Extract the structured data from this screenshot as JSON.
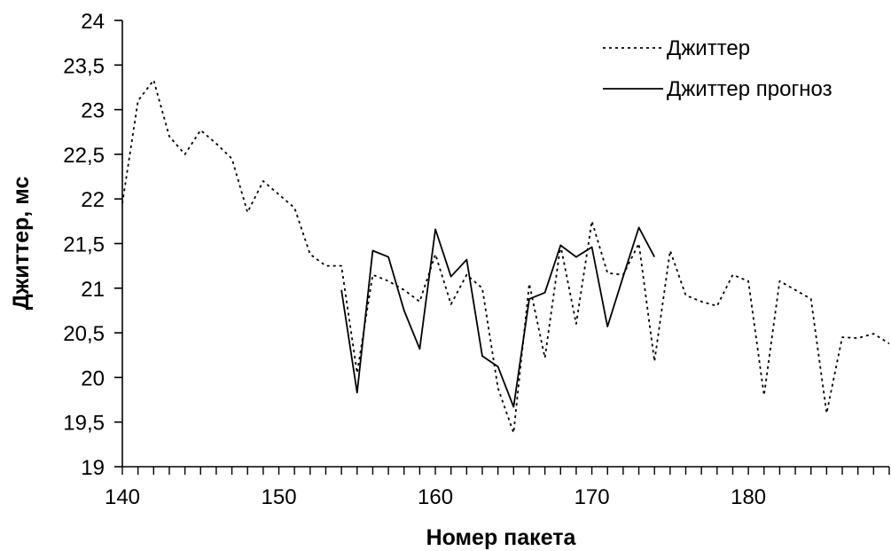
{
  "chart_data": {
    "type": "line",
    "title": "",
    "xlabel": "Номер пакета",
    "ylabel": "Джиттер, мс",
    "xlim": [
      140,
      189
    ],
    "ylim": [
      19,
      24
    ],
    "x_ticks": [
      140,
      150,
      160,
      170,
      180
    ],
    "x_tick_labels": [
      "140",
      "150",
      "160",
      "170",
      "180"
    ],
    "y_ticks": [
      19,
      19.5,
      20,
      20.5,
      21,
      21.5,
      22,
      22.5,
      23,
      23.5,
      24
    ],
    "y_tick_labels": [
      "19",
      "19,5",
      "20",
      "20,5",
      "21",
      "21,5",
      "22",
      "22,5",
      "23",
      "23,5",
      "24"
    ],
    "grid": false,
    "legend_position": "top-right",
    "series": [
      {
        "name": "Джиттер",
        "style": "dotted",
        "color": "#000000",
        "x": [
          140,
          141,
          142,
          143,
          144,
          145,
          146,
          147,
          148,
          149,
          150,
          151,
          152,
          153,
          154,
          155,
          156,
          157,
          158,
          159,
          160,
          161,
          162,
          163,
          164,
          165,
          166,
          167,
          168,
          169,
          170,
          171,
          172,
          173,
          174,
          175,
          176,
          177,
          178,
          179,
          180,
          181,
          182,
          183,
          184,
          185,
          186,
          187,
          188,
          189
        ],
        "y": [
          21.95,
          23.1,
          23.33,
          22.7,
          22.5,
          22.77,
          22.62,
          22.45,
          21.85,
          22.2,
          22.05,
          21.9,
          21.38,
          21.25,
          21.25,
          20.05,
          21.15,
          21.08,
          20.98,
          20.85,
          21.38,
          20.82,
          21.15,
          21.0,
          19.88,
          19.38,
          21.05,
          20.22,
          21.48,
          20.6,
          21.75,
          21.17,
          21.15,
          21.5,
          20.18,
          21.42,
          20.92,
          20.85,
          20.8,
          21.15,
          21.08,
          19.8,
          21.08,
          20.98,
          20.88,
          19.6,
          20.45,
          20.44,
          20.49,
          20.38
        ]
      },
      {
        "name": "Джиттер прогноз",
        "style": "solid",
        "color": "#000000",
        "x": [
          154,
          155,
          156,
          157,
          158,
          159,
          160,
          161,
          162,
          163,
          164,
          165,
          166,
          167,
          168,
          169,
          170,
          171,
          172,
          173,
          174
        ],
        "y": [
          20.98,
          19.83,
          21.42,
          21.35,
          20.75,
          20.32,
          21.66,
          21.13,
          21.32,
          20.24,
          20.12,
          19.67,
          20.88,
          20.95,
          21.48,
          21.35,
          21.46,
          20.57,
          21.13,
          21.68,
          21.35
        ]
      }
    ]
  }
}
